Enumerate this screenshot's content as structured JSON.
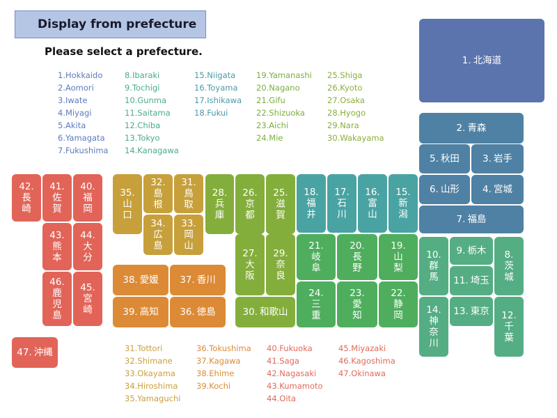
{
  "header": {
    "title": "Display from prefecture",
    "subtitle": "Please select a prefecture."
  },
  "top_lists": [
    {
      "color": "#5b7bbd",
      "items": [
        "1.Hokkaido",
        "2.Aomori",
        "3.Iwate",
        "4.Miyagi",
        "5.Akita",
        "6.Yamagata",
        "7.Fukushima"
      ]
    },
    {
      "color": "#4aab8e",
      "items": [
        "8.Ibaraki",
        "9.Tochigi",
        "10.Gunma",
        "11.Saitama",
        "12.Chiba",
        "13.Tokyo",
        "14.Kanagawa"
      ]
    },
    {
      "color": "#4a9aa6",
      "items": [
        "15.Niigata",
        "16.Toyama",
        "17.Ishikawa",
        "18.Fukui"
      ]
    },
    {
      "color": "#7aae3c",
      "items": [
        "19.Yamanashi",
        "20.Nagano",
        "21.Gifu",
        "22.Shizuoka",
        "23.Aichi",
        "24.Mie"
      ]
    },
    {
      "color": "#89ae3a",
      "items": [
        "25.Shiga",
        "26.Kyoto",
        "27.Osaka",
        "28.Hyogo",
        "29.Nara",
        "30.Wakayama"
      ]
    }
  ],
  "bottom_lists": [
    {
      "color": "#c9a03c",
      "items": [
        "31.Tottori",
        "32.Shimane",
        "33.Okayama",
        "34.Hiroshima",
        "35.Yamaguchi"
      ]
    },
    {
      "color": "#d98c38",
      "items": [
        "36.Tokushima",
        "37.Kagawa",
        "38.Ehime",
        "39.Kochi"
      ]
    },
    {
      "color": "#e06a5c",
      "items": [
        "40.Fukuoka",
        "41.Saga",
        "42.Nagasaki",
        "43.Kumamoto",
        "44.Oita"
      ]
    },
    {
      "color": "#e06a5c",
      "items": [
        "45.Miyazaki",
        "46.Kagoshima",
        "47.Okinawa"
      ]
    }
  ],
  "tiles": [
    {
      "num": "1.",
      "name": "北海道"
    },
    {
      "num": "2.",
      "name": "青森"
    },
    {
      "num": "3.",
      "name": "岩手"
    },
    {
      "num": "4.",
      "name": "宮城"
    },
    {
      "num": "5.",
      "name": "秋田"
    },
    {
      "num": "6.",
      "name": "山形"
    },
    {
      "num": "7.",
      "name": "福島"
    },
    {
      "num": "8.",
      "name": "茨城"
    },
    {
      "num": "9.",
      "name": "栃木"
    },
    {
      "num": "10.",
      "name": "群馬"
    },
    {
      "num": "11.",
      "name": "埼玉"
    },
    {
      "num": "12.",
      "name": "千葉"
    },
    {
      "num": "13.",
      "name": "東京"
    },
    {
      "num": "14.",
      "name": "神奈川"
    },
    {
      "num": "15.",
      "name": "新潟"
    },
    {
      "num": "16.",
      "name": "富山"
    },
    {
      "num": "17.",
      "name": "石川"
    },
    {
      "num": "18.",
      "name": "福井"
    },
    {
      "num": "19.",
      "name": "山梨"
    },
    {
      "num": "20.",
      "name": "長野"
    },
    {
      "num": "21.",
      "name": "岐阜"
    },
    {
      "num": "22.",
      "name": "静岡"
    },
    {
      "num": "23.",
      "name": "愛知"
    },
    {
      "num": "24.",
      "name": "三重"
    },
    {
      "num": "25.",
      "name": "滋賀"
    },
    {
      "num": "26.",
      "name": "京都"
    },
    {
      "num": "27.",
      "name": "大阪"
    },
    {
      "num": "28.",
      "name": "兵庫"
    },
    {
      "num": "29.",
      "name": "奈良"
    },
    {
      "num": "30.",
      "name": "和歌山"
    },
    {
      "num": "31.",
      "name": "鳥取"
    },
    {
      "num": "32.",
      "name": "島根"
    },
    {
      "num": "33.",
      "name": "岡山"
    },
    {
      "num": "34.",
      "name": "広島"
    },
    {
      "num": "35.",
      "name": "山口"
    },
    {
      "num": "36.",
      "name": "徳島"
    },
    {
      "num": "37.",
      "name": "香川"
    },
    {
      "num": "38.",
      "name": "愛媛"
    },
    {
      "num": "39.",
      "name": "高知"
    },
    {
      "num": "40.",
      "name": "福岡"
    },
    {
      "num": "41.",
      "name": "佐賀"
    },
    {
      "num": "42.",
      "name": "長崎"
    },
    {
      "num": "43.",
      "name": "熊本"
    },
    {
      "num": "44.",
      "name": "大分"
    },
    {
      "num": "45.",
      "name": "宮崎"
    },
    {
      "num": "46.",
      "name": "鹿児島"
    },
    {
      "num": "47.",
      "name": "沖縄"
    }
  ]
}
